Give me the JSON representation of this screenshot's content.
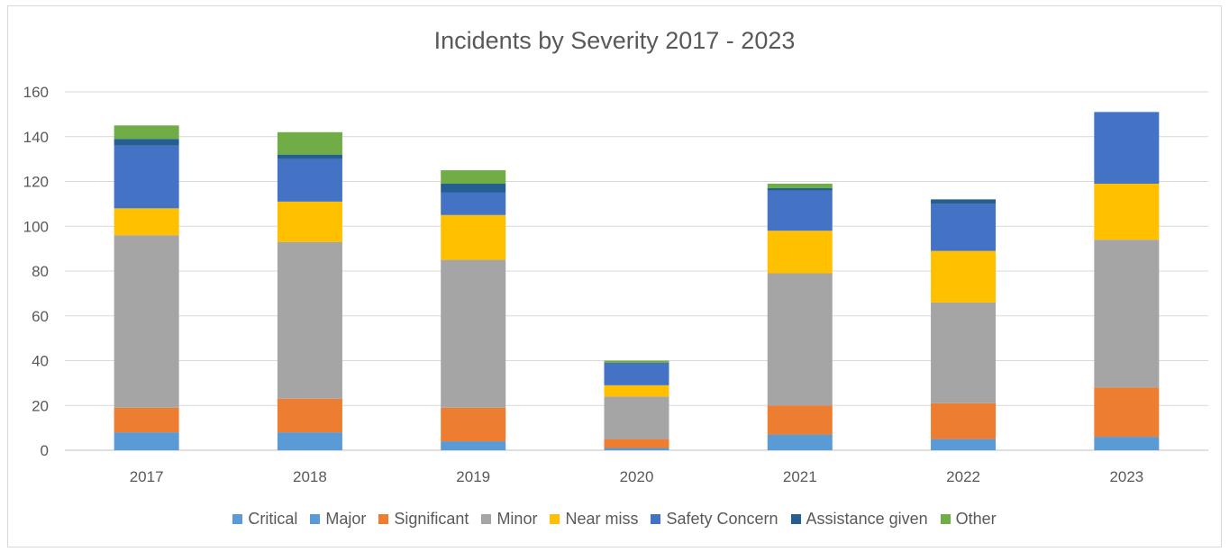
{
  "chart_data": {
    "type": "bar",
    "stacked": true,
    "title": "Incidents by Severity 2017 - 2023",
    "xlabel": "",
    "ylabel": "",
    "ylim": [
      0,
      160
    ],
    "y_ticks": [
      0,
      20,
      40,
      60,
      80,
      100,
      120,
      140,
      160
    ],
    "grid": true,
    "legend_position": "bottom",
    "categories": [
      "2017",
      "2018",
      "2019",
      "2020",
      "2021",
      "2022",
      "2023"
    ],
    "series": [
      {
        "name": "Critical",
        "color": "#5b9bd5",
        "values": [
          0,
          0,
          0,
          0,
          0,
          0,
          0
        ]
      },
      {
        "name": "Major",
        "color": "#5b9bd5",
        "values": [
          8,
          8,
          4,
          1,
          7,
          5,
          6
        ]
      },
      {
        "name": "Significant",
        "color": "#ed7d31",
        "values": [
          11,
          15,
          15,
          4,
          13,
          16,
          22
        ]
      },
      {
        "name": "Minor",
        "color": "#a5a5a5",
        "values": [
          77,
          70,
          66,
          19,
          59,
          45,
          66
        ]
      },
      {
        "name": "Near miss",
        "color": "#ffc000",
        "values": [
          12,
          18,
          20,
          5,
          19,
          23,
          25
        ]
      },
      {
        "name": "Safety Concern",
        "color": "#4472c4",
        "values": [
          28,
          19,
          10,
          10,
          18,
          21,
          32
        ]
      },
      {
        "name": "Assistance given",
        "color": "#255e91",
        "values": [
          3,
          2,
          4,
          0,
          1,
          2,
          0
        ]
      },
      {
        "name": "Other",
        "color": "#70ad47",
        "values": [
          6,
          10,
          6,
          1,
          2,
          0,
          0
        ]
      }
    ]
  }
}
